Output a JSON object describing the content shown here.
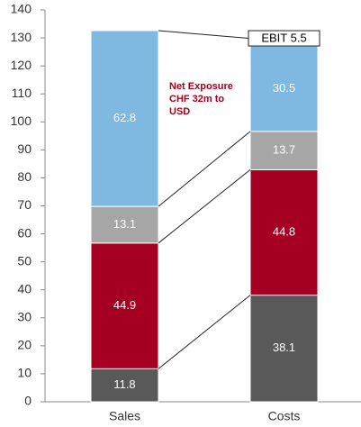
{
  "chart_data": {
    "type": "stacked_bar",
    "categories": [
      "Sales",
      "Costs"
    ],
    "series": [
      {
        "color": "#595959",
        "values": [
          11.8,
          38.1
        ]
      },
      {
        "color": "#a50021",
        "values": [
          44.9,
          44.8
        ]
      },
      {
        "color": "#a6a6a6",
        "values": [
          13.1,
          13.7
        ]
      },
      {
        "color": "#7fb8e0",
        "values": [
          62.8,
          30.5
        ]
      }
    ],
    "ylim": [
      0,
      140
    ],
    "yticks": [
      0,
      10,
      20,
      30,
      40,
      50,
      60,
      70,
      80,
      90,
      100,
      110,
      120,
      130,
      140
    ],
    "grid": false,
    "annotations": [
      {
        "text": "EBIT 5.5"
      },
      {
        "lines": [
          "Net Exposure",
          "CHF 32m to",
          "USD"
        ],
        "color": "#a50021"
      }
    ]
  }
}
